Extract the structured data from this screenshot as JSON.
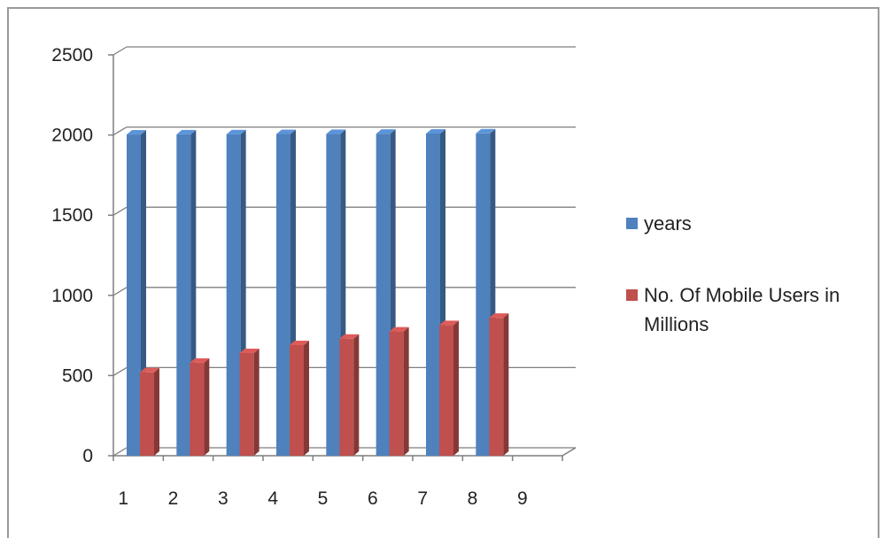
{
  "chart_data": {
    "type": "bar",
    "categories": [
      "1",
      "2",
      "3",
      "4",
      "5",
      "6",
      "7",
      "8",
      "9"
    ],
    "series": [
      {
        "name": "years",
        "values": [
          2003,
          2004,
          2005,
          2006,
          2007,
          2008,
          2009,
          2010,
          null
        ],
        "color": "#4f81bd"
      },
      {
        "name": "No. Of Mobile Users in Millions",
        "values": [
          520,
          580,
          640,
          690,
          730,
          775,
          815,
          860,
          null
        ],
        "color": "#c0504d"
      }
    ],
    "y_ticks": [
      "0",
      "500",
      "1000",
      "1500",
      "2000",
      "2500"
    ],
    "ylim": [
      0,
      2500
    ],
    "grid": true,
    "legend_position": "right",
    "style": "3d-clustered-column"
  }
}
